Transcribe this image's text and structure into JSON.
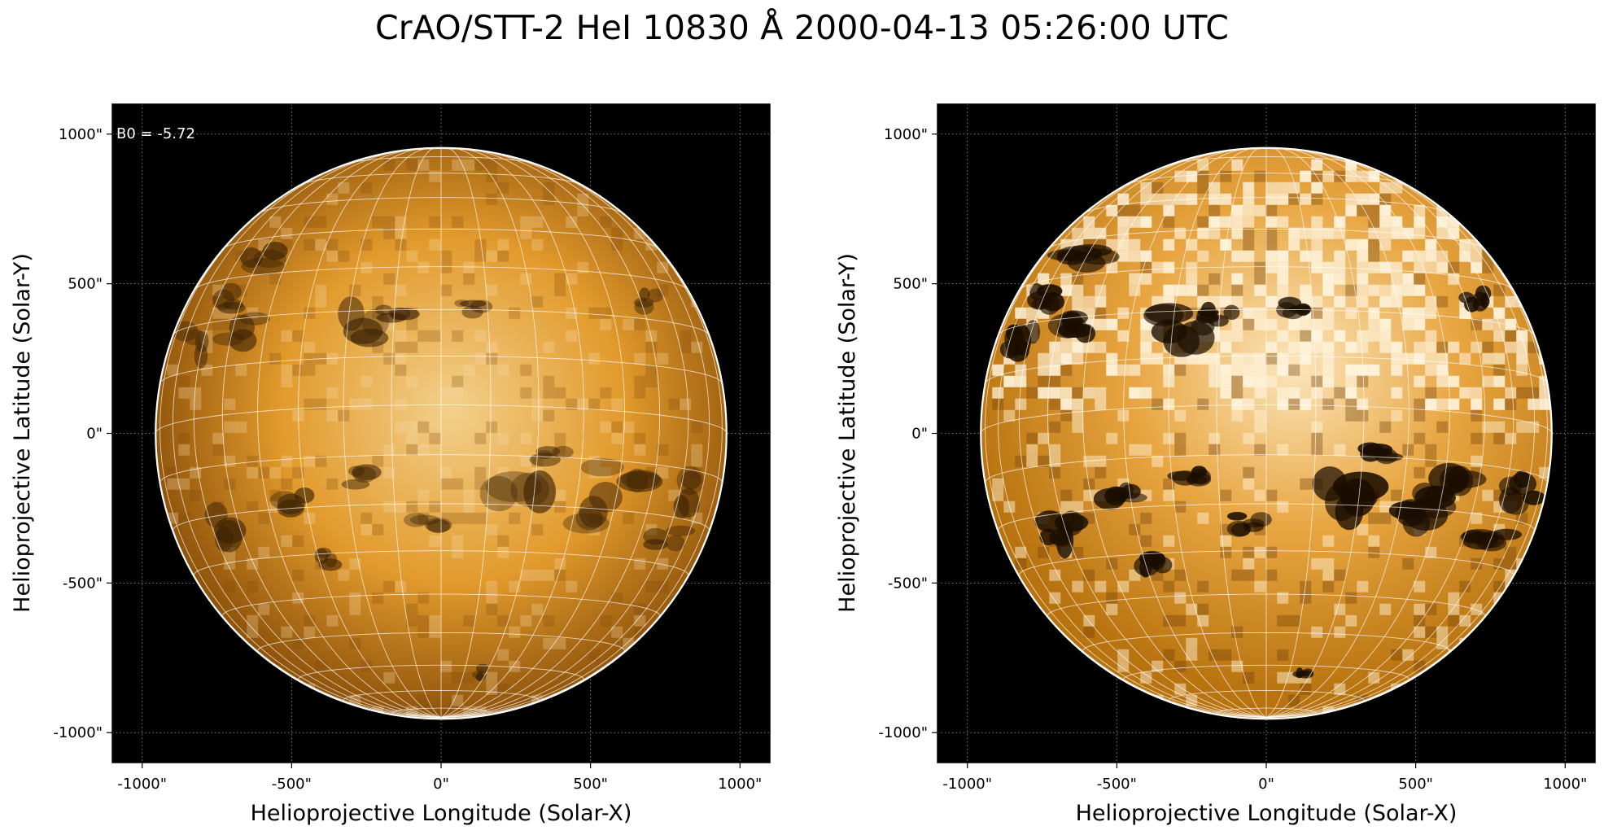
{
  "figure": {
    "title": "CrAO/STT-2 HeI 10830 Å 2000-04-13 05:26:00 UTC"
  },
  "panels": [
    {
      "id": "left",
      "annotation": "B0 = -5.72",
      "xlabel": "Helioprojective Longitude (Solar-X)",
      "ylabel": "Helioprojective Latitude (Solar-Y)",
      "xticks": [
        "-1000\"",
        "-500\"",
        "0\"",
        "500\"",
        "1000\""
      ],
      "yticks": [
        "1000\"",
        "500\"",
        "0\"",
        "-500\"",
        "-1000\""
      ],
      "xtick_values": [
        -1000,
        -500,
        0,
        500,
        1000
      ],
      "ytick_values": [
        1000,
        500,
        0,
        -500,
        -1000
      ],
      "axis_range_arcsec": [
        -1100,
        1100
      ],
      "solar_radius_arcsec": 955,
      "disk_colors": {
        "center": "#f3d08c",
        "mid": "#e29a2c",
        "limb": "#8a4f08"
      },
      "contrast": "low"
    },
    {
      "id": "right",
      "annotation": "",
      "xlabel": "Helioprojective Longitude (Solar-X)",
      "ylabel": "Helioprojective Latitude (Solar-Y)",
      "xticks": [
        "-1000\"",
        "-500\"",
        "0\"",
        "500\"",
        "1000\""
      ],
      "yticks": [
        "1000\"",
        "500\"",
        "0\"",
        "-500\"",
        "-1000\""
      ],
      "xtick_values": [
        -1000,
        -500,
        0,
        500,
        1000
      ],
      "ytick_values": [
        1000,
        500,
        0,
        -500,
        -1000
      ],
      "axis_range_arcsec": [
        -1100,
        1100
      ],
      "solar_radius_arcsec": 955,
      "disk_colors": {
        "center": "#fbe6bd",
        "mid": "#e8a540",
        "limb": "#b8730f"
      },
      "contrast": "high"
    }
  ],
  "colors": {
    "background": "#000000",
    "limb_circle": "#ffffff",
    "grid": "#ffffff",
    "tick_grid": "#9a9a9a"
  }
}
